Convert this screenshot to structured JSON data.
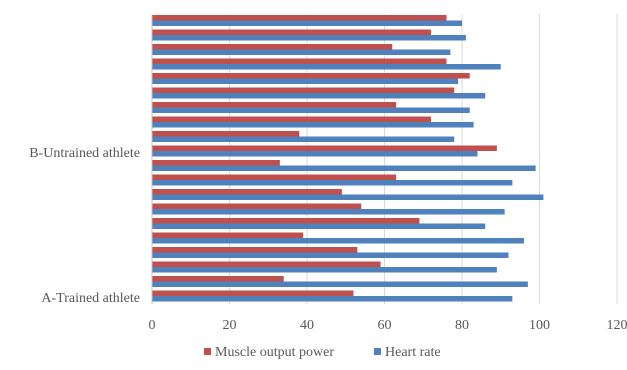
{
  "chart_data": {
    "type": "bar",
    "orientation": "horizontal",
    "title": "",
    "xlabel": "",
    "ylabel": "",
    "xlim": [
      0,
      120
    ],
    "x_ticks": [
      0,
      20,
      40,
      60,
      80,
      100,
      120
    ],
    "grid": true,
    "legend_position": "bottom",
    "group_labels": [
      {
        "label": "A-Trained athlete",
        "row": 0
      },
      {
        "label": "B-Untrained athlete",
        "row": 10
      }
    ],
    "series": [
      {
        "name": "Muscle output power",
        "color": "#C0504D",
        "values": [
          52,
          34,
          59,
          53,
          39,
          69,
          54,
          49,
          63,
          33,
          89,
          38,
          72,
          63,
          78,
          82,
          76,
          62,
          72,
          76
        ]
      },
      {
        "name": "Heart rate",
        "color": "#4F81BD",
        "values": [
          93,
          97,
          89,
          92,
          96,
          86,
          91,
          101,
          93,
          99,
          84,
          78,
          83,
          82,
          86,
          79,
          90,
          77,
          81,
          80
        ]
      }
    ]
  }
}
